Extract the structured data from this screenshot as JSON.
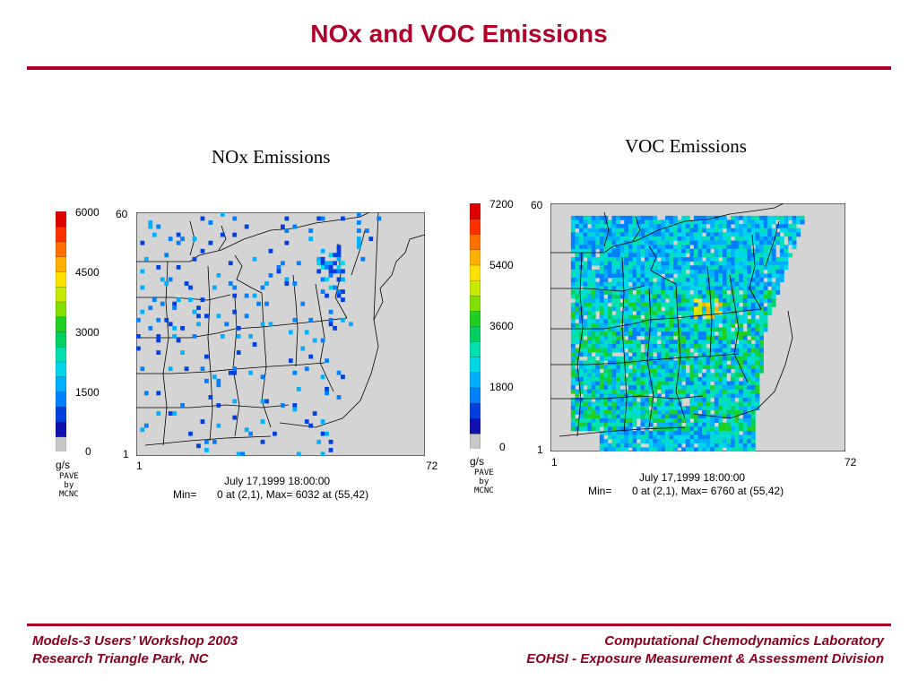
{
  "slide": {
    "title": "NOx and VOC Emissions",
    "accent_color": "#b0002a"
  },
  "colorbar_colors": [
    "#c8c8c8",
    "#1010b0",
    "#0040e0",
    "#0080ff",
    "#00b0ff",
    "#00d8e8",
    "#00e0b0",
    "#00d060",
    "#20d020",
    "#80e000",
    "#c8e800",
    "#ffe000",
    "#ffb000",
    "#ff7000",
    "#ff3000",
    "#e00000"
  ],
  "panels": [
    {
      "title": "NOx Emissions",
      "colorbar_ticks": [
        "6000",
        "4500",
        "3000",
        "1500",
        "0"
      ],
      "units": "g/s",
      "attribution": [
        "PAVE",
        "by",
        "MCNC"
      ],
      "y_axis": {
        "top": "60",
        "bottom": "1"
      },
      "x_axis": {
        "left": "1",
        "right": "72"
      },
      "timestamp": "July 17,1999 18:00:00",
      "minmax_label": "Min=",
      "minmax_text": "0 at (2,1), Max=  6032 at (55,42)"
    },
    {
      "title": "VOC Emissions",
      "colorbar_ticks": [
        "7200",
        "5400",
        "3600",
        "1800",
        "0"
      ],
      "units": "g/s",
      "attribution": [
        "PAVE",
        "by",
        "MCNC"
      ],
      "y_axis": {
        "top": "60",
        "bottom": "1"
      },
      "x_axis": {
        "left": "1",
        "right": "72"
      },
      "timestamp": "July 17,1999 18:00:00",
      "minmax_label": "Min=",
      "minmax_text": "0 at (2,1), Max=  6760 at (55,42)"
    }
  ],
  "footer": {
    "left_line1": "Models-3 Users’ Workshop 2003",
    "left_line2": "Research Triangle Park, NC",
    "right_line1": "Computational Chemodynamics Laboratory",
    "right_line2": "EOHSI - Exposure Measurement & Assessment Division"
  }
}
